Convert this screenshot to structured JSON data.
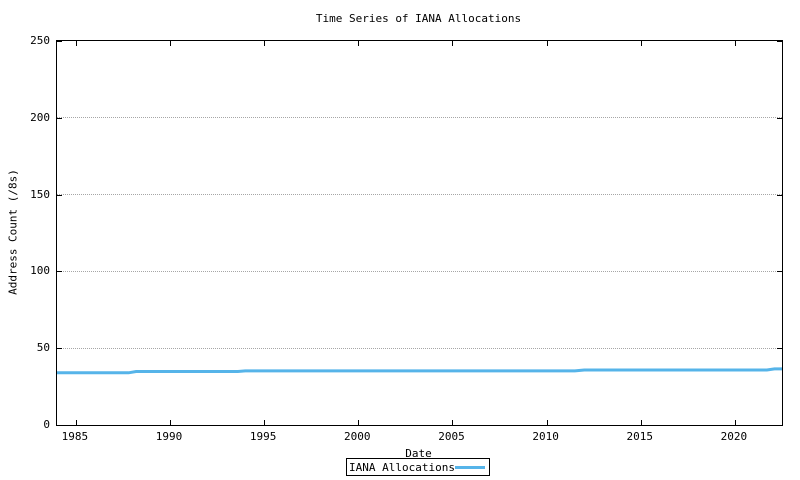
{
  "chart_data": {
    "type": "line",
    "title": "Time Series of IANA Allocations",
    "xlabel": "Date",
    "ylabel": "Address Count (/8s)",
    "xlim": [
      1984,
      2022.5
    ],
    "ylim": [
      0,
      250
    ],
    "x_ticks": [
      1985,
      1990,
      1995,
      2000,
      2005,
      2010,
      2015,
      2020
    ],
    "y_ticks": [
      0,
      50,
      100,
      150,
      200,
      250
    ],
    "grid": "horizontal-dotted",
    "legend_position": "below-chart-centered",
    "series": [
      {
        "name": "IANA Allocations",
        "color": "#56b4e9",
        "points": [
          [
            1984.0,
            34.0
          ],
          [
            1987.8,
            34.0
          ],
          [
            1988.2,
            34.8
          ],
          [
            1993.6,
            34.8
          ],
          [
            1994.0,
            35.2
          ],
          [
            2011.5,
            35.2
          ],
          [
            2012.0,
            35.8
          ],
          [
            2021.7,
            35.8
          ],
          [
            2022.1,
            36.5
          ],
          [
            2022.5,
            36.5
          ]
        ]
      }
    ]
  },
  "colors": {
    "line": "#56b4e9",
    "grid": "#a6a6a6",
    "frame": "#000000",
    "background": "#ffffff"
  }
}
